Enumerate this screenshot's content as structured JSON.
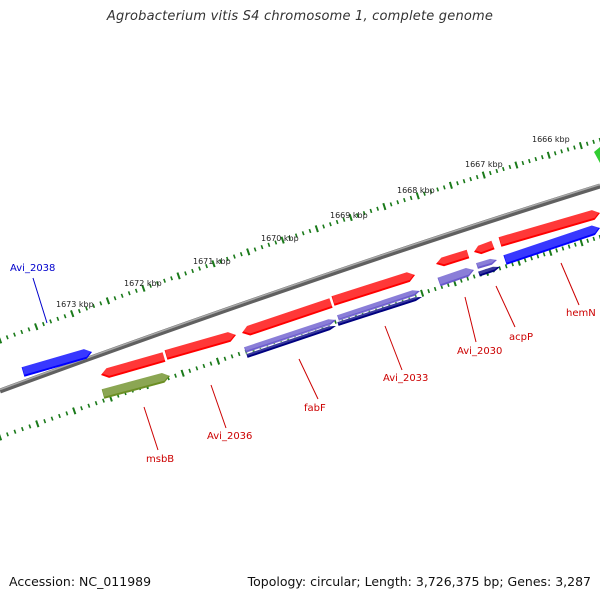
{
  "title": "Agrobacterium vitis S4 chromosome 1, complete genome",
  "footer": {
    "accession": "Accession: NC_011989",
    "summary": "Topology: circular; Length: 3,726,375 bp; Genes: 3,287"
  },
  "colors": {
    "backbone": "#808080",
    "ticks": "#1a7a1a",
    "red_gene": "#ff0000",
    "red_label": "#cc0000",
    "blue_gene": "#0000ff",
    "blue_label": "#0000cc",
    "light_purple": "#6a5acd",
    "dark_navy": "#000080",
    "olive": "#6b8e23",
    "green": "#32cd32"
  },
  "scale_ticks": [
    "1666 kbp",
    "1667 kbp",
    "1668 kbp",
    "1669 kbp",
    "1670 kbp",
    "1671 kbp",
    "1672 kbp",
    "1673 kbp"
  ],
  "gene_labels": [
    "Avi_2038",
    "hemN",
    "acpP",
    "Avi_2030",
    "Avi_2033",
    "fabF",
    "Avi_2036",
    "msbB"
  ]
}
